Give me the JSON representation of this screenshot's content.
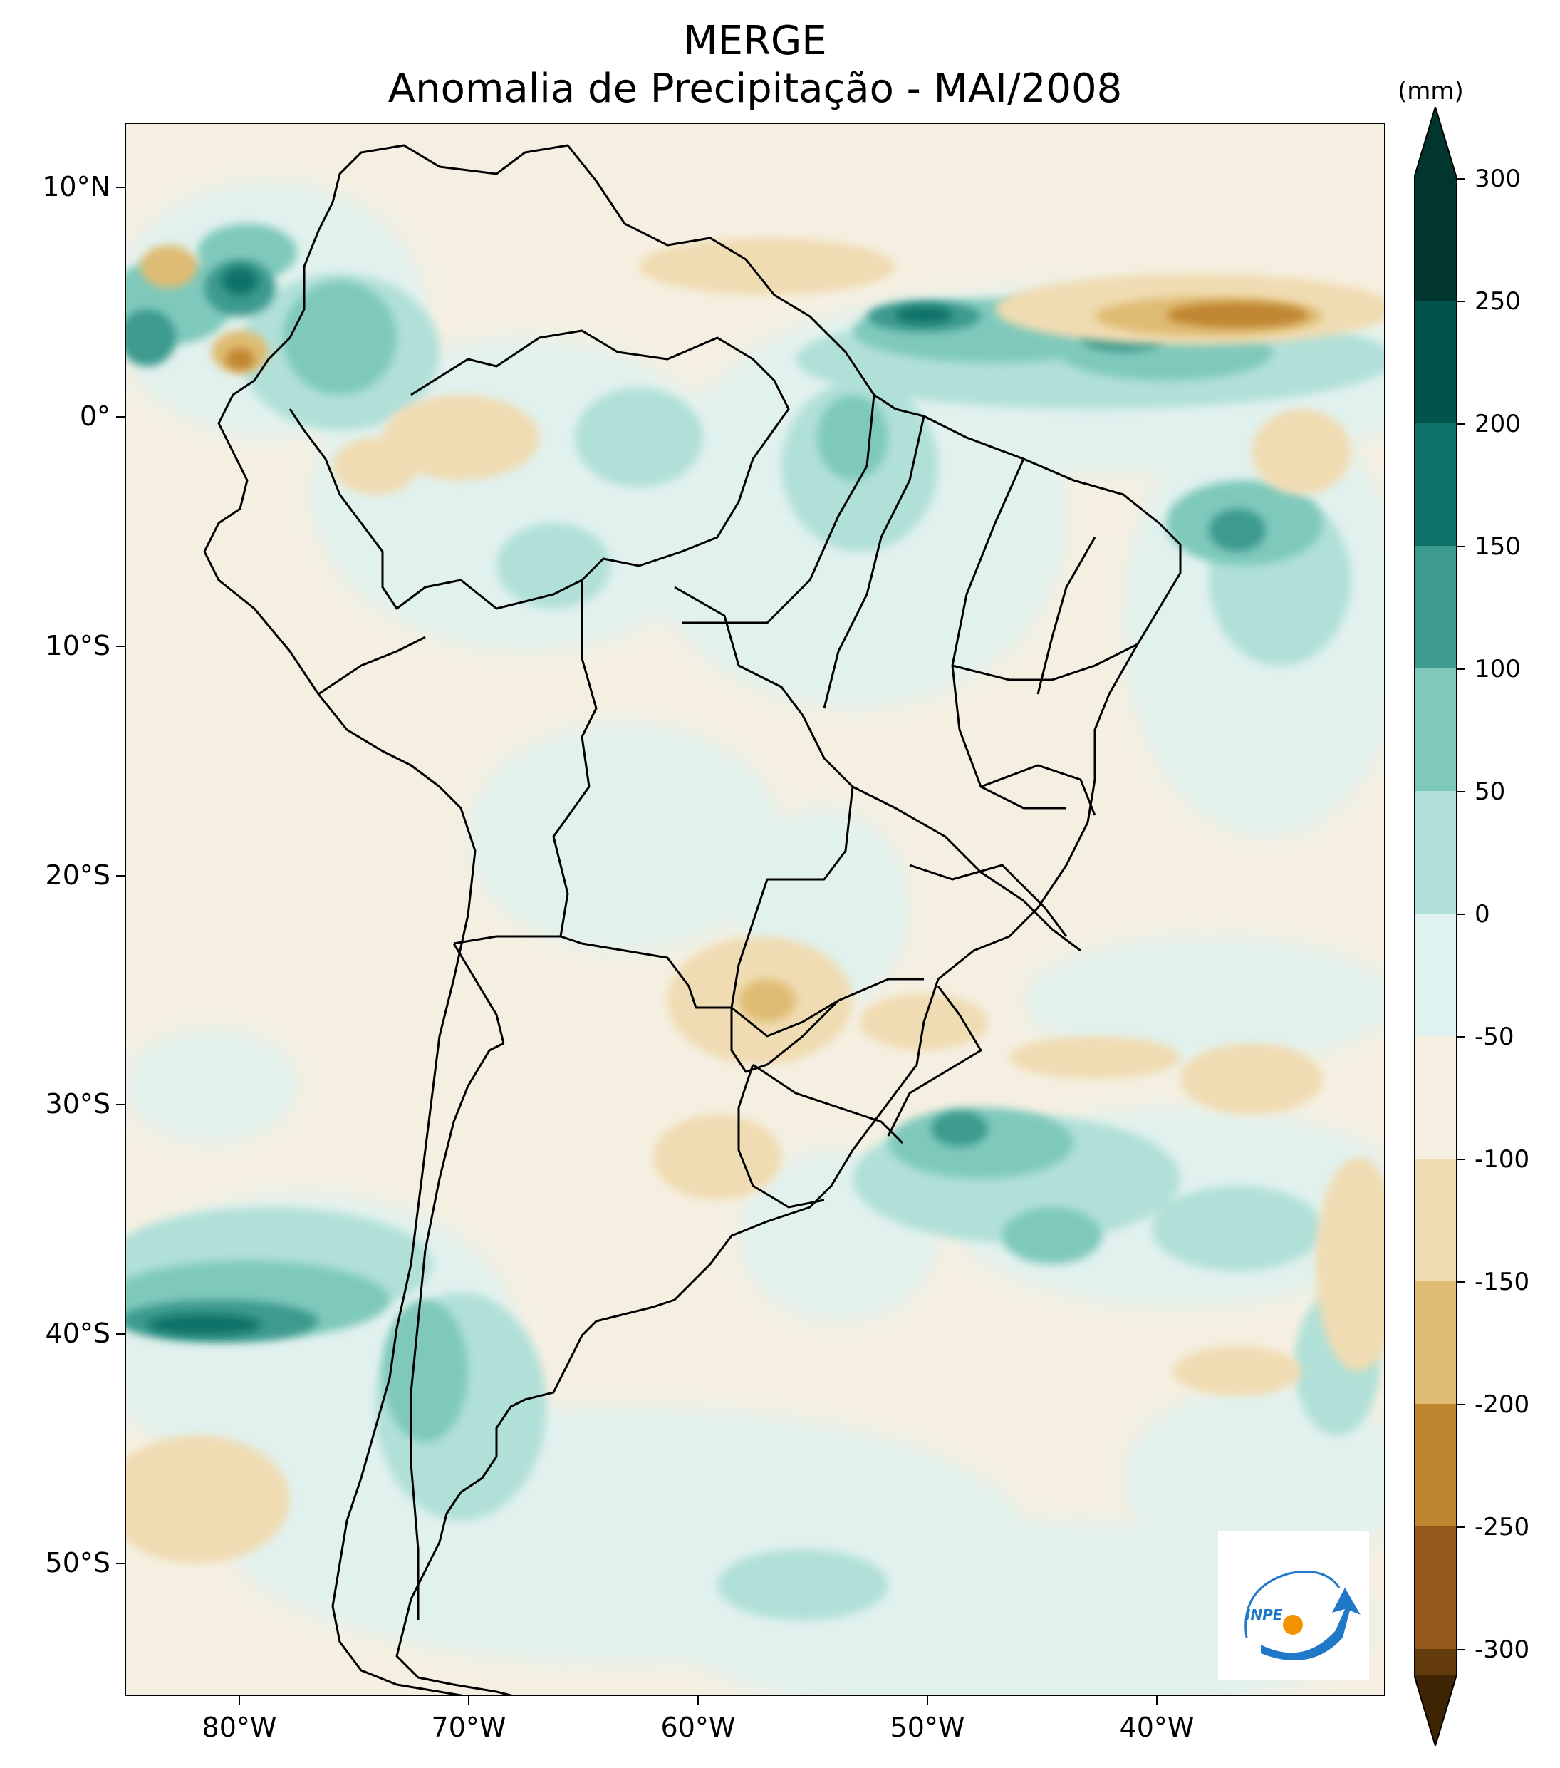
{
  "map": {
    "title": "MERGE",
    "subtitle": "Anomalia de Precipitação - MAI/2008",
    "units": "(mm)",
    "region": "South America",
    "lat_labels": [
      {
        "text": "10°N",
        "lat": 10
      },
      {
        "text": "0°",
        "lat": 0
      },
      {
        "text": "10°S",
        "lat": -10
      },
      {
        "text": "20°S",
        "lat": -20
      },
      {
        "text": "30°S",
        "lat": -30
      },
      {
        "text": "40°S",
        "lat": -40
      },
      {
        "text": "50°S",
        "lat": -50
      }
    ],
    "lon_labels": [
      {
        "text": "80°W",
        "lon": -80
      },
      {
        "text": "70°W",
        "lon": -70
      },
      {
        "text": "60°W",
        "lon": -60
      },
      {
        "text": "50°W",
        "lon": -50
      },
      {
        "text": "40°W",
        "lon": -40
      }
    ],
    "extent": {
      "lon_min": -85,
      "lon_max": -30,
      "lat_min": -56,
      "lat_max": 12.7
    },
    "logo": {
      "text": "INPE",
      "colors": {
        "blue": "#1f78c8",
        "orange": "#f39200"
      }
    }
  },
  "colorbar": {
    "levels": [
      "300",
      "250",
      "200",
      "150",
      "100",
      "50",
      "0",
      "-50",
      "-100",
      "-150",
      "-200",
      "-250",
      "-300"
    ],
    "colors": [
      "#01362f",
      "#01544b",
      "#0d7268",
      "#3c9a8e",
      "#7fc9bc",
      "#b1e0d8",
      "#e0f2ef",
      "#f5efe1",
      "#f0dcb2",
      "#dfbc73",
      "#c08530",
      "#96571a",
      "#633b0c",
      "#3f2404"
    ]
  }
}
